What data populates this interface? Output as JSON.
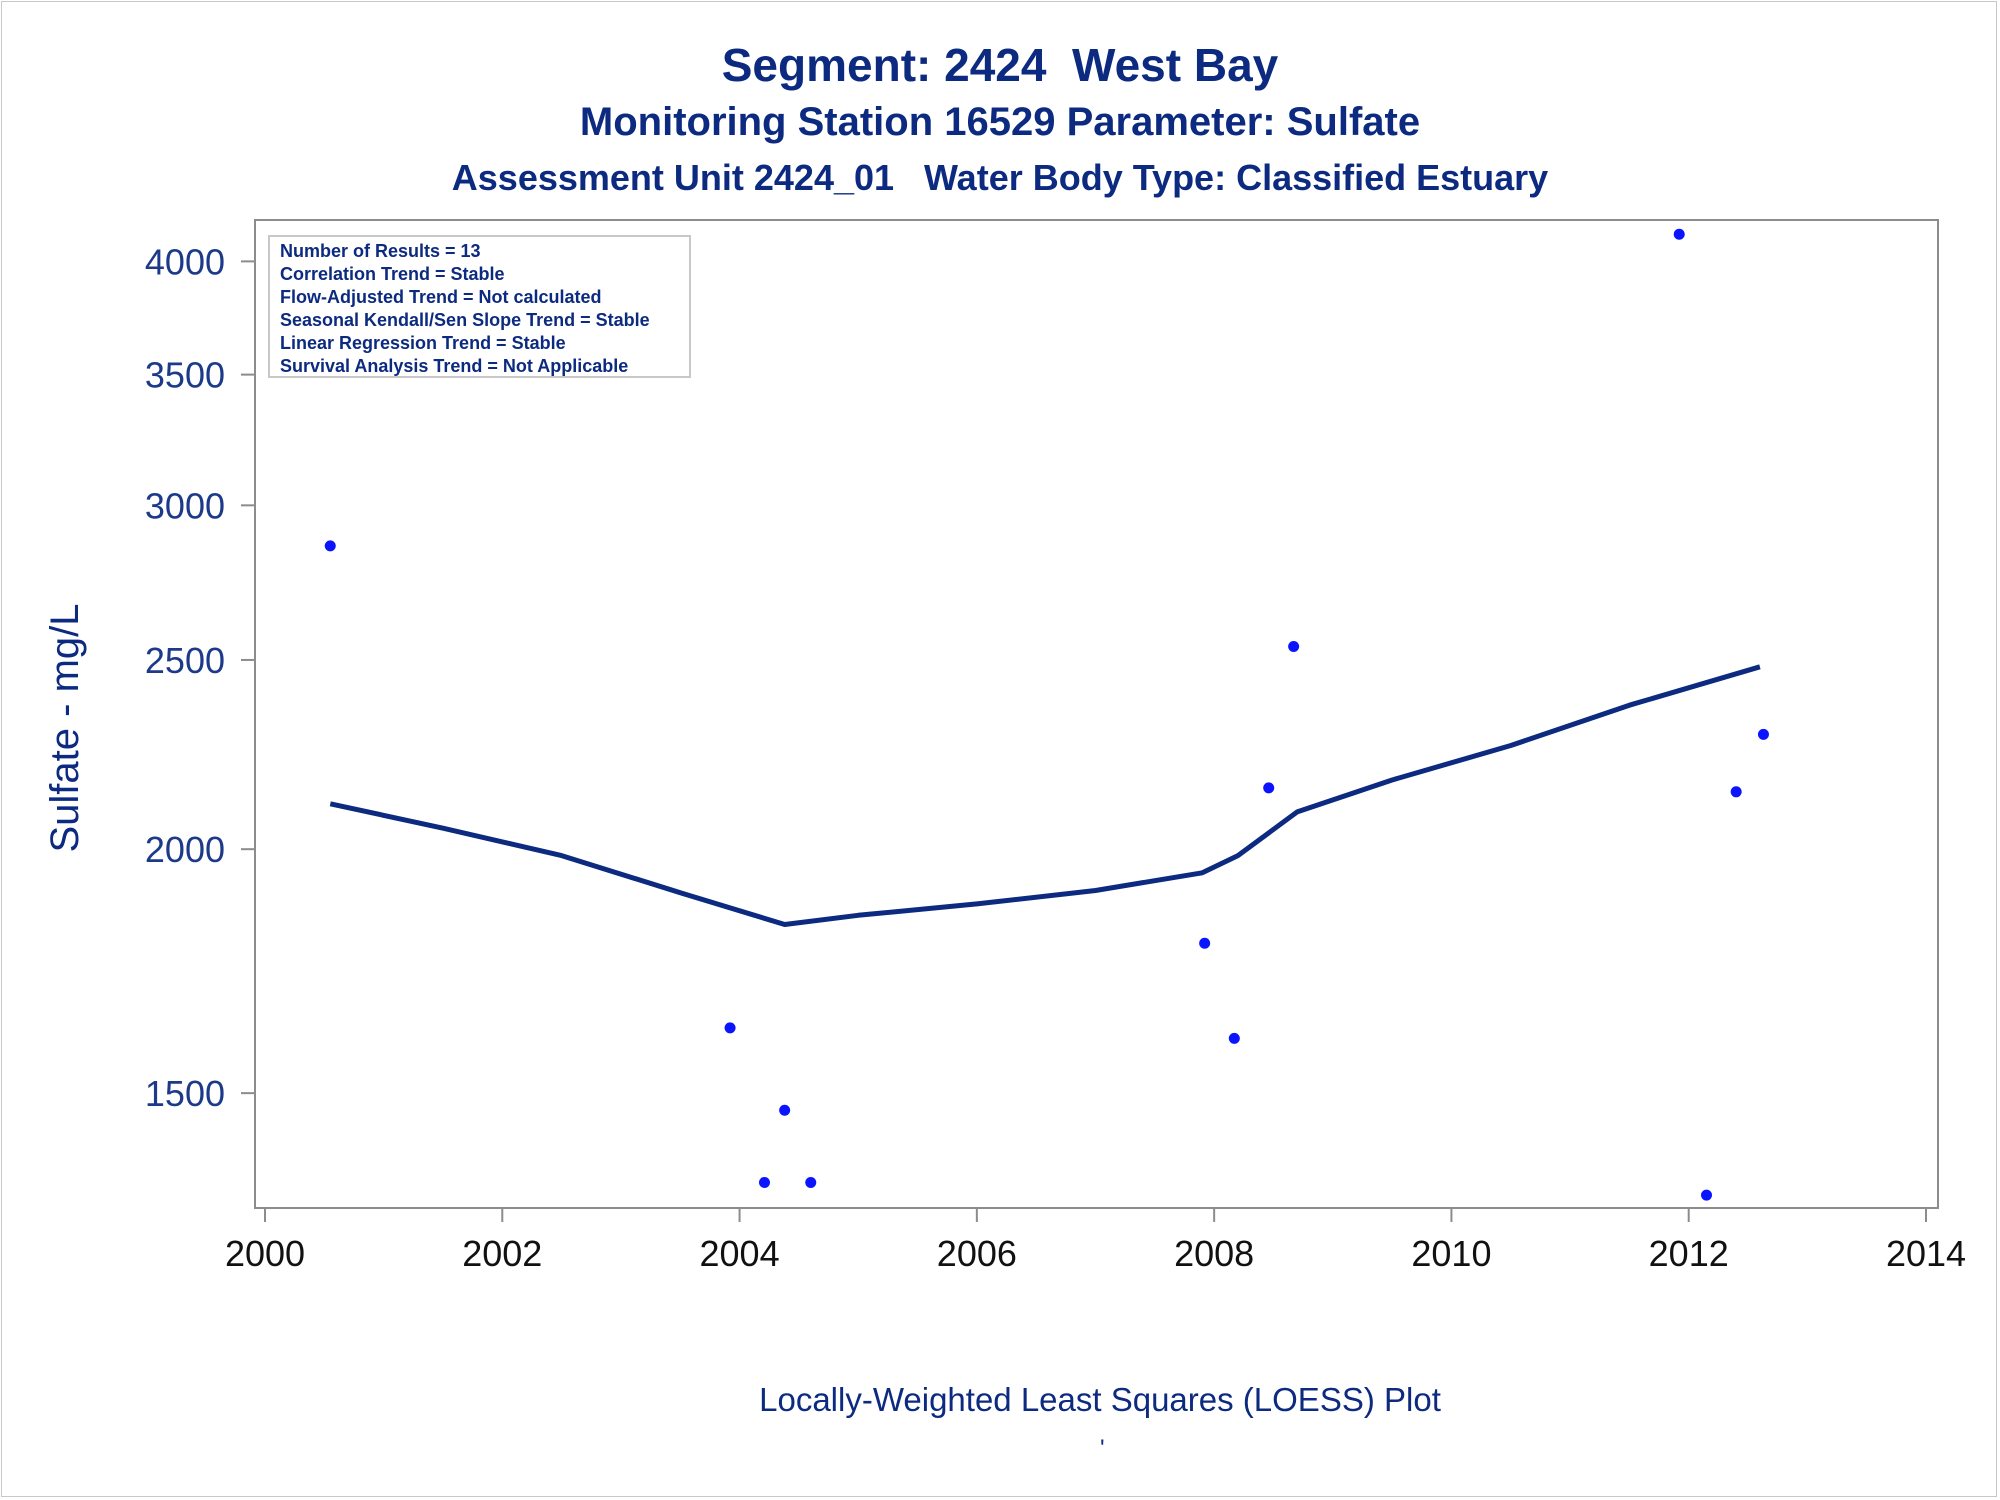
{
  "chart_data": {
    "type": "scatter",
    "title": "Segment: 2424  West Bay",
    "subtitle": "Monitoring Station 16529 Parameter: Sulfate",
    "subtitle2": "Assessment Unit 2424_01   Water Body Type: Classified Estuary",
    "ylabel": "Sulfate - mg/L",
    "xlabel": "",
    "caption": "Locally-Weighted Least Squares (LOESS) Plot",
    "caption_mark": "'",
    "y_scale": "log",
    "xlim": [
      2000,
      2014
    ],
    "ylim": [
      1310,
      4200
    ],
    "xticks": [
      2000,
      2002,
      2004,
      2006,
      2008,
      2010,
      2012,
      2014
    ],
    "yticks": [
      1500,
      2000,
      2500,
      3000,
      3500,
      4000
    ],
    "grid": false,
    "stats_box": [
      "Number of Results = 13",
      "Correlation Trend = Stable",
      "Flow-Adjusted Trend = Not calculated",
      "Seasonal Kendall/Sen Slope Trend = Stable",
      "Linear Regression Trend = Stable",
      "Survival Analysis Trend = Not Applicable"
    ],
    "legend_placement": "top-left",
    "points": [
      {
        "x": 2000.55,
        "y": 2860
      },
      {
        "x": 2003.92,
        "y": 1620
      },
      {
        "x": 2004.21,
        "y": 1350
      },
      {
        "x": 2004.38,
        "y": 1470
      },
      {
        "x": 2004.6,
        "y": 1350
      },
      {
        "x": 2007.92,
        "y": 1790
      },
      {
        "x": 2008.17,
        "y": 1600
      },
      {
        "x": 2008.46,
        "y": 2150
      },
      {
        "x": 2008.67,
        "y": 2540
      },
      {
        "x": 2011.92,
        "y": 4130
      },
      {
        "x": 2012.15,
        "y": 1330
      },
      {
        "x": 2012.4,
        "y": 2140
      },
      {
        "x": 2012.63,
        "y": 2290
      }
    ],
    "loess": {
      "x": [
        2000.55,
        2001.5,
        2002.5,
        2003.5,
        2004.38,
        2005.0,
        2006.0,
        2007.0,
        2007.9,
        2008.2,
        2008.7,
        2009.5,
        2010.5,
        2011.5,
        2012.6
      ],
      "y": [
        2110,
        2050,
        1985,
        1900,
        1830,
        1850,
        1875,
        1905,
        1945,
        1985,
        2090,
        2170,
        2260,
        2370,
        2480
      ]
    },
    "colors": {
      "points": "#0a14ff",
      "line": "#0c2a80",
      "text": "#0c2a80",
      "axis": "#8c8c8c"
    }
  }
}
